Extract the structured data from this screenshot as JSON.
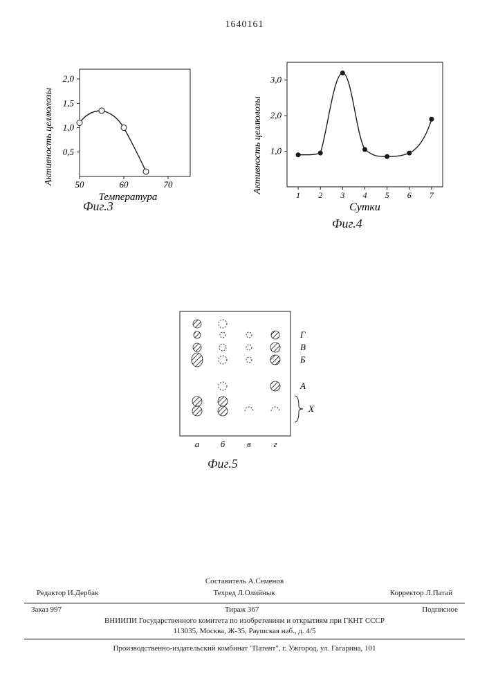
{
  "page_number": "1640161",
  "fig3": {
    "type": "line",
    "caption": "Фиг.3",
    "ylabel": "Активность целлюлозы",
    "xlabel": "Температура",
    "yticks": [
      "0,5",
      "1,0",
      "1,5",
      "2,0"
    ],
    "xticks": [
      "50",
      "60",
      "70"
    ],
    "ylim": [
      0,
      2.2
    ],
    "xlim": [
      50,
      75
    ],
    "points": [
      {
        "x": 50,
        "y": 1.1
      },
      {
        "x": 55,
        "y": 1.35
      },
      {
        "x": 60,
        "y": 1.0
      },
      {
        "x": 65,
        "y": 0.1
      }
    ],
    "line_color": "#1a1a1a",
    "line_width": 1.4,
    "marker": "circle-open",
    "marker_size": 4,
    "background_color": "#ffffff",
    "frame_color": "#1a1a1a"
  },
  "fig4": {
    "type": "line",
    "caption": "Фиг.4",
    "ylabel": "Активность целлюлозы",
    "xlabel": "Сутки",
    "yticks": [
      "1,0",
      "2,0",
      "3,0"
    ],
    "xticks": [
      "1",
      "2",
      "3",
      "4",
      "5",
      "6",
      "7"
    ],
    "ylim": [
      0,
      3.5
    ],
    "xlim": [
      0.5,
      7.5
    ],
    "points": [
      {
        "x": 1,
        "y": 0.9
      },
      {
        "x": 2,
        "y": 0.95
      },
      {
        "x": 3,
        "y": 3.2
      },
      {
        "x": 4,
        "y": 1.05
      },
      {
        "x": 5,
        "y": 0.85
      },
      {
        "x": 6,
        "y": 0.95
      },
      {
        "x": 7,
        "y": 1.9
      }
    ],
    "line_color": "#1a1a1a",
    "line_width": 1.4,
    "marker": "circle-filled",
    "marker_size": 3.5,
    "background_color": "#ffffff",
    "frame_color": "#1a1a1a"
  },
  "fig5": {
    "type": "tlc-plate",
    "caption": "Фиг.5",
    "columns": [
      "а",
      "б",
      "в",
      "г"
    ],
    "row_labels": [
      "Г",
      "В",
      "Б",
      "А"
    ],
    "brace_label": "X",
    "hatched_fill": "#3a3a3a",
    "open_fill": "none",
    "stroke": "#1a1a1a",
    "frame_color": "#1a1a1a",
    "spots": [
      {
        "col": 0,
        "y": 18,
        "r": 6,
        "fill": "hatched"
      },
      {
        "col": 1,
        "y": 18,
        "r": 6,
        "fill": "open"
      },
      {
        "col": 0,
        "y": 34,
        "r": 5,
        "fill": "hatched"
      },
      {
        "col": 1,
        "y": 34,
        "r": 4,
        "fill": "open"
      },
      {
        "col": 2,
        "y": 34,
        "r": 4,
        "fill": "open"
      },
      {
        "col": 3,
        "y": 34,
        "r": 6,
        "fill": "hatched",
        "label": "Г"
      },
      {
        "col": 0,
        "y": 52,
        "r": 6,
        "fill": "hatched"
      },
      {
        "col": 1,
        "y": 52,
        "r": 5,
        "fill": "open"
      },
      {
        "col": 2,
        "y": 52,
        "r": 4,
        "fill": "open"
      },
      {
        "col": 3,
        "y": 52,
        "r": 7,
        "fill": "hatched",
        "label": "В"
      },
      {
        "col": 0,
        "y": 70,
        "r": 8,
        "fill": "hatched",
        "ry": 10
      },
      {
        "col": 1,
        "y": 70,
        "r": 6,
        "fill": "open"
      },
      {
        "col": 2,
        "y": 70,
        "r": 4,
        "fill": "open"
      },
      {
        "col": 3,
        "y": 70,
        "r": 7,
        "fill": "hatched",
        "label": "Б"
      },
      {
        "col": 1,
        "y": 108,
        "r": 6,
        "fill": "open"
      },
      {
        "col": 3,
        "y": 108,
        "r": 7,
        "fill": "hatched",
        "label": "А"
      },
      {
        "col": 0,
        "y": 130,
        "r": 7,
        "fill": "hatched"
      },
      {
        "col": 1,
        "y": 130,
        "r": 7,
        "fill": "hatched"
      },
      {
        "col": 0,
        "y": 144,
        "r": 7,
        "fill": "hatched"
      },
      {
        "col": 1,
        "y": 144,
        "r": 7,
        "fill": "hatched"
      },
      {
        "col": 2,
        "y": 144,
        "r": 6,
        "fill": "open-arc"
      },
      {
        "col": 3,
        "y": 144,
        "r": 6,
        "fill": "open-arc"
      }
    ]
  },
  "footer": {
    "составитель": "Составитель А.Семенов",
    "редактор": "Редактор И.Дербак",
    "техред": "Техред Л.Олийнык",
    "корректор": "Корректор Л.Патай",
    "заказ": "Заказ 997",
    "тираж": "Тираж 367",
    "подписное": "Подписное",
    "вниипи": "ВНИИПИ Государственного комитета по изобретениям и открытиям при ГКНТ СССР",
    "адрес1": "113035, Москва, Ж-35, Раушская наб., д. 4/5",
    "завод": "Производственно-издательский комбинат \"Патент\", г. Ужгород, ул. Гагарина, 101"
  }
}
